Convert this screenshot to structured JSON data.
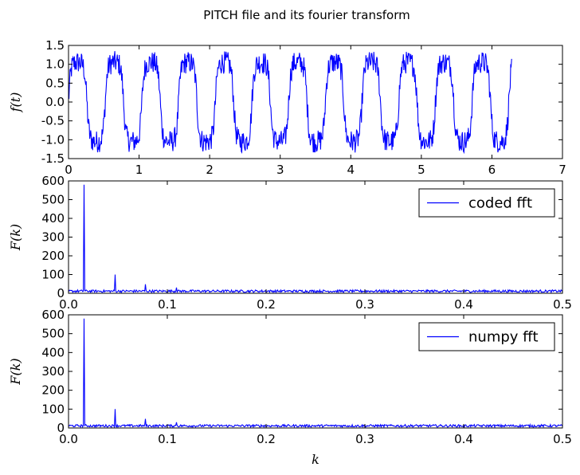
{
  "figure": {
    "title": "PITCH file and its fourier transform",
    "line_color": "#0000ff",
    "axes_color": "#000000",
    "background": "#ffffff"
  },
  "chart_data": [
    {
      "type": "line",
      "ylabel": "f(t)",
      "xlabel": "",
      "xlim": [
        0,
        7
      ],
      "ylim": [
        -1.5,
        1.5
      ],
      "xticks": [
        "0",
        "1",
        "2",
        "3",
        "4",
        "5",
        "6",
        "7"
      ],
      "yticks": [
        "1.5",
        "1.0",
        "0.5",
        "0.0",
        "-0.5",
        "-1.0",
        "-1.5"
      ],
      "xticks_values": [
        0,
        1,
        2,
        3,
        4,
        5,
        6,
        7
      ],
      "yticks_values": [
        1.5,
        1.0,
        0.5,
        0.0,
        -0.5,
        -1.0,
        -1.5
      ],
      "signal": {
        "t_range": [
          0,
          6.28
        ],
        "fundamental_period": 0.52,
        "amplitude": 1.05,
        "noise_amplitude": 0.3
      },
      "legend": null
    },
    {
      "type": "line",
      "ylabel": "F(k)",
      "xlabel": "",
      "xlim": [
        0,
        0.5
      ],
      "ylim": [
        0,
        600
      ],
      "xticks": [
        "0.0",
        "0.1",
        "0.2",
        "0.3",
        "0.4",
        "0.5"
      ],
      "yticks": [
        "600",
        "500",
        "400",
        "300",
        "200",
        "100",
        "0"
      ],
      "xticks_values": [
        0,
        0.1,
        0.2,
        0.3,
        0.4,
        0.5
      ],
      "yticks_values": [
        600,
        500,
        400,
        300,
        200,
        100,
        0
      ],
      "peaks": [
        {
          "k": 0.016,
          "F": 580
        },
        {
          "k": 0.047,
          "F": 100
        },
        {
          "k": 0.078,
          "F": 48
        },
        {
          "k": 0.109,
          "F": 30
        }
      ],
      "noise_floor": [
        5,
        18
      ],
      "legend": {
        "label": "coded fft",
        "placement": "upper-right"
      }
    },
    {
      "type": "line",
      "ylabel": "F(k)",
      "xlabel": "k",
      "xlim": [
        0,
        0.5
      ],
      "ylim": [
        0,
        600
      ],
      "xticks": [
        "0.0",
        "0.1",
        "0.2",
        "0.3",
        "0.4",
        "0.5"
      ],
      "yticks": [
        "600",
        "500",
        "400",
        "300",
        "200",
        "100",
        "0"
      ],
      "xticks_values": [
        0,
        0.1,
        0.2,
        0.3,
        0.4,
        0.5
      ],
      "yticks_values": [
        600,
        500,
        400,
        300,
        200,
        100,
        0
      ],
      "peaks": [
        {
          "k": 0.016,
          "F": 580
        },
        {
          "k": 0.047,
          "F": 100
        },
        {
          "k": 0.078,
          "F": 48
        },
        {
          "k": 0.109,
          "F": 30
        }
      ],
      "noise_floor": [
        5,
        18
      ],
      "legend": {
        "label": "numpy fft",
        "placement": "upper-right"
      }
    }
  ]
}
